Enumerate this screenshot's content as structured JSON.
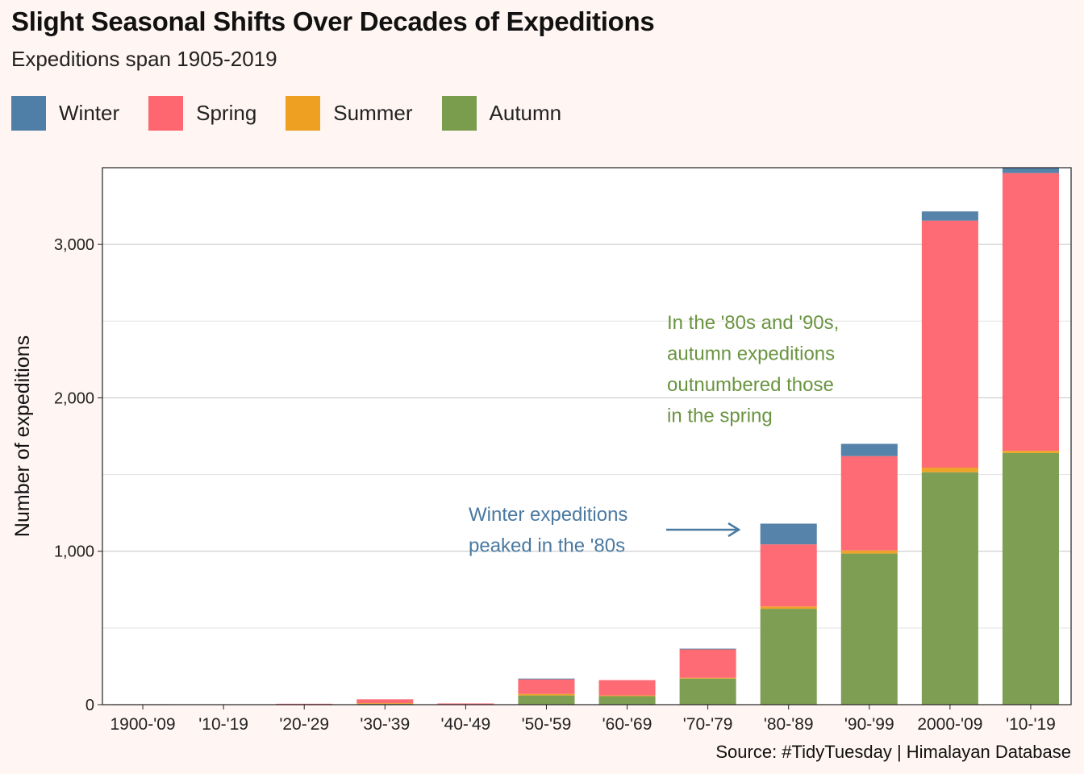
{
  "title": "Slight Seasonal Shifts Over Decades of Expeditions",
  "subtitle": "Expeditions span 1905-2019",
  "legend": [
    {
      "label": "Winter",
      "color": "#4f7fa6"
    },
    {
      "label": "Spring",
      "color": "#fe6670"
    },
    {
      "label": "Summer",
      "color": "#eda022"
    },
    {
      "label": "Autumn",
      "color": "#7a9c4d"
    }
  ],
  "source": "Source: #TidyTuesday | Himalayan Database",
  "chart_data": {
    "type": "bar",
    "stacked": true,
    "title": "Slight Seasonal Shifts Over Decades of Expeditions",
    "subtitle": "Expeditions span 1905-2019",
    "xlabel": "",
    "ylabel": "Number of expeditions",
    "ylim": [
      0,
      3500
    ],
    "yticks": [
      0,
      1000,
      2000,
      3000
    ],
    "ytick_labels": [
      "0",
      "1,000",
      "2,000",
      "3,000"
    ],
    "grid": true,
    "legend_position": "top-left",
    "categories": [
      "1900-'09",
      "'10-'19",
      "'20-'29",
      "'30-'39",
      "'40-'49",
      "'50-'59",
      "'60-'69",
      "'70-'79",
      "'80-'89",
      "'90-'99",
      "2000-'09",
      "'10-'19"
    ],
    "series": [
      {
        "name": "Autumn",
        "color": "#7a9c4d",
        "values": [
          0,
          0,
          0,
          5,
          2,
          60,
          55,
          170,
          625,
          985,
          1515,
          1640
        ]
      },
      {
        "name": "Summer",
        "color": "#eda022",
        "values": [
          0,
          0,
          0,
          5,
          0,
          10,
          5,
          5,
          15,
          20,
          30,
          15
        ]
      },
      {
        "name": "Spring",
        "color": "#fe6670",
        "values": [
          3,
          2,
          6,
          25,
          6,
          95,
          100,
          185,
          405,
          615,
          1610,
          1810
        ]
      },
      {
        "name": "Winter",
        "color": "#4f7fa6",
        "values": [
          0,
          0,
          0,
          0,
          0,
          5,
          0,
          5,
          135,
          80,
          60,
          35
        ]
      }
    ],
    "annotations": [
      {
        "text_lines": [
          "In the '80s and '90s,",
          "autumn expeditions",
          "outnumbered those",
          "in the spring"
        ],
        "color": "#6a9440"
      },
      {
        "text_lines": [
          "Winter expeditions",
          "peaked in the '80s"
        ],
        "color": "#4a79a1",
        "arrow_to_category": "'80-'89"
      }
    ],
    "source": "Source: #TidyTuesday | Himalayan Database"
  }
}
